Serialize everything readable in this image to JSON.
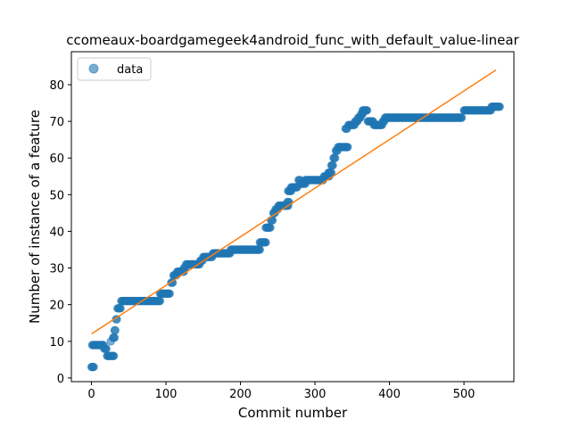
{
  "chart_data": {
    "type": "scatter",
    "title": "ccomeaux-boardgamegeek4android_func_with_default_value-linear",
    "xlabel": "Commit number",
    "ylabel": "Number of instance of a feature",
    "xlim": [
      -27,
      567
    ],
    "ylim": [
      -1,
      89
    ],
    "xticks": [
      0,
      100,
      200,
      300,
      400,
      500
    ],
    "yticks": [
      0,
      10,
      20,
      30,
      40,
      50,
      60,
      70,
      80
    ],
    "grid": false,
    "legend": {
      "placement": "top-left",
      "entries": [
        "data"
      ]
    },
    "colors": {
      "data": "#1f77b4",
      "fit": "#ff7f0e"
    },
    "series": [
      {
        "name": "data",
        "kind": "scatter",
        "segments": [
          [
            0,
            3,
            3,
            1
          ],
          [
            1,
            9,
            16,
            1
          ],
          [
            17,
            8,
            20,
            1
          ],
          [
            21,
            6,
            30,
            1
          ],
          [
            26,
            10,
            26,
            1
          ],
          [
            29,
            11,
            31,
            1
          ],
          [
            31,
            13,
            32,
            1
          ],
          [
            33,
            16,
            34,
            1
          ],
          [
            35,
            19,
            39,
            1
          ],
          [
            40,
            21,
            92,
            1
          ],
          [
            92,
            23,
            105,
            1
          ],
          [
            107,
            26,
            109,
            1
          ],
          [
            110,
            28,
            114,
            1
          ],
          [
            115,
            29,
            124,
            1
          ],
          [
            124,
            30,
            126,
            1
          ],
          [
            127,
            31,
            145,
            1
          ],
          [
            146,
            32,
            149,
            1
          ],
          [
            150,
            33,
            162,
            1
          ],
          [
            163,
            34,
            186,
            1
          ],
          [
            187,
            35,
            226,
            1
          ],
          [
            226,
            37,
            234,
            1
          ],
          [
            234,
            41,
            240,
            1
          ],
          [
            241,
            43,
            243,
            1
          ],
          [
            244,
            45,
            246,
            1
          ],
          [
            247,
            46,
            250,
            1
          ],
          [
            251,
            47,
            264,
            1
          ],
          [
            263,
            48,
            265,
            1
          ],
          [
            264,
            51,
            268,
            1
          ],
          [
            268,
            52,
            276,
            1
          ],
          [
            278,
            54,
            280,
            1
          ],
          [
            281,
            53,
            287,
            1
          ],
          [
            287,
            54,
            311,
            1
          ],
          [
            312,
            55,
            319,
            1
          ],
          [
            318,
            56,
            322,
            1
          ],
          [
            322,
            58,
            324,
            1
          ],
          [
            325,
            60,
            327,
            1
          ],
          [
            328,
            62,
            330,
            1
          ],
          [
            331,
            63,
            344,
            1
          ],
          [
            341,
            68,
            343,
            1
          ],
          [
            345,
            69,
            353,
            1
          ],
          [
            354,
            70,
            357,
            1
          ],
          [
            358,
            71,
            361,
            1
          ],
          [
            362,
            72,
            364,
            1
          ],
          [
            364,
            73,
            370,
            1
          ],
          [
            371,
            70,
            378,
            1
          ],
          [
            379,
            69,
            390,
            1
          ],
          [
            391,
            70,
            393,
            1
          ],
          [
            394,
            71,
            497,
            1
          ],
          [
            500,
            73,
            536,
            1
          ],
          [
            537,
            74,
            548,
            1
          ]
        ]
      },
      {
        "name": "",
        "kind": "line",
        "x": [
          0,
          543
        ],
        "y": [
          12,
          84
        ]
      }
    ]
  }
}
